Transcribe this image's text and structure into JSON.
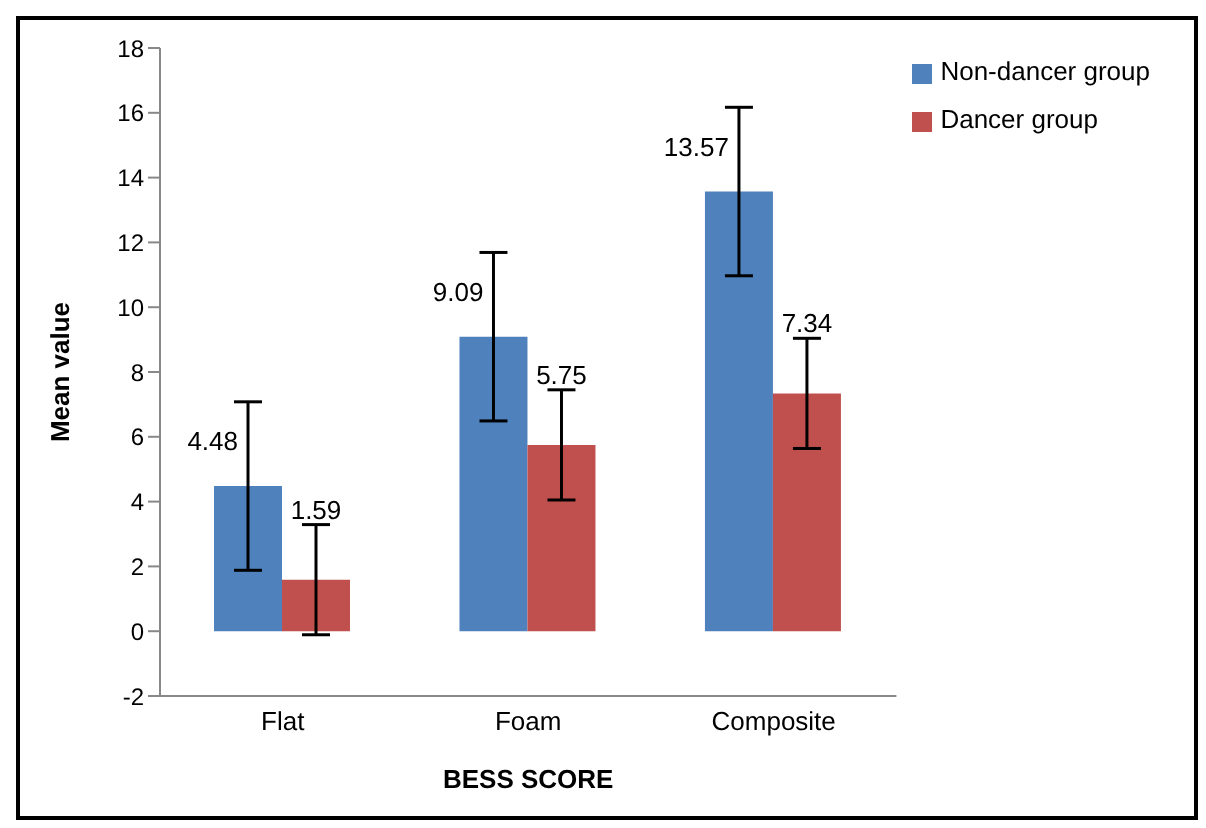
{
  "chart_data": {
    "type": "bar",
    "xlabel": "BESS SCORE",
    "ylabel": "Mean value",
    "categories": [
      "Flat",
      "Foam",
      "Composite"
    ],
    "series": [
      {
        "name": "Non-dancer group",
        "color": "#4f81bd",
        "values": [
          4.48,
          9.09,
          13.57
        ],
        "errors": [
          2.6,
          2.6,
          2.6
        ]
      },
      {
        "name": "Dancer group",
        "color": "#c0504d",
        "values": [
          1.59,
          5.75,
          7.34
        ],
        "errors": [
          1.7,
          1.7,
          1.7
        ]
      }
    ],
    "ylim": [
      -2,
      18
    ],
    "yticks": [
      -2,
      0,
      2,
      4,
      6,
      8,
      10,
      12,
      14,
      16,
      18
    ],
    "grid": false,
    "legend": "top right",
    "data_labels": true
  }
}
